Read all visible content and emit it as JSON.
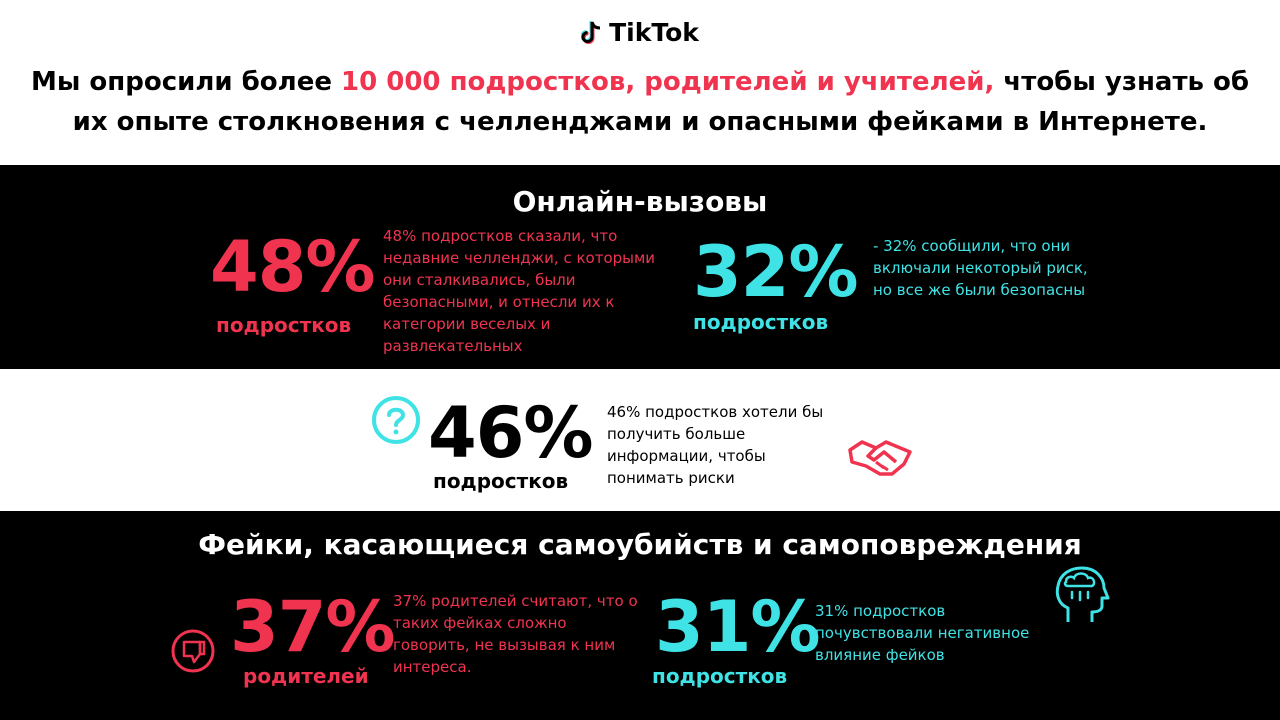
{
  "header": {
    "logo_text": "TikTok",
    "headline_part1": "Мы опросили более ",
    "headline_highlight": "10 000 подростков, родителей и учителей,",
    "headline_part2": " чтобы узнать об их опыте столкновения с челленджами и опасными фейками в Интернете."
  },
  "section1": {
    "title": "Онлайн-вызовы",
    "stat1": {
      "value": "48%",
      "label": "подростков",
      "description": "48% подростков сказали, что недавние челленджи, с которыми они сталкивались, были безопасными, и отнесли их к категории веселых и развлекательных"
    },
    "stat2": {
      "value": "32%",
      "label": "подростков",
      "description": "- 32% сообщили, что они включали некоторый риск, но все же были безопасны"
    }
  },
  "section2": {
    "stat": {
      "value": "46%",
      "label": "подростков",
      "description": "46% подростков хотели бы получить больше информации, чтобы понимать риски"
    },
    "icons": [
      "question-mark-icon",
      "handshake-icon"
    ]
  },
  "section3": {
    "title": "Фейки, касающиеся самоубийств и самоповреждения",
    "stat1": {
      "value": "37%",
      "label": "родителей",
      "description": "37% родителей считают, что о таких фейках сложно говорить, не вызывая к ним интереса."
    },
    "stat2": {
      "value": "31%",
      "label": "подростков",
      "description": "31% подростков почувствовали негативное влияние фейков"
    },
    "icons": [
      "thumbs-down-icon",
      "head-cloud-icon"
    ]
  },
  "colors": {
    "red": "#f0344f",
    "cyan": "#3fe3e6",
    "black": "#000000",
    "white": "#ffffff"
  }
}
